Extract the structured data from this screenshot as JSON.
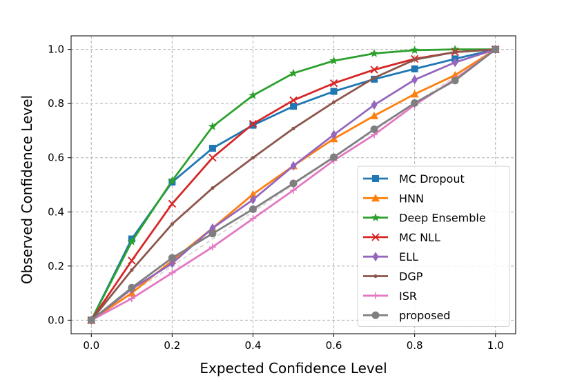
{
  "chart_data": {
    "type": "line",
    "title": "",
    "xlabel": "Expected Confidence Level",
    "ylabel": "Observed Confidence Level",
    "xlim": [
      -0.05,
      1.05
    ],
    "ylim": [
      -0.05,
      1.05
    ],
    "xticks": [
      0.0,
      0.2,
      0.4,
      0.6,
      0.8,
      1.0
    ],
    "yticks": [
      0.0,
      0.2,
      0.4,
      0.6,
      0.8,
      1.0
    ],
    "xtick_labels": [
      "0.0",
      "0.2",
      "0.4",
      "0.6",
      "0.8",
      "1.0"
    ],
    "ytick_labels": [
      "0.0",
      "0.2",
      "0.4",
      "0.6",
      "0.8",
      "1.0"
    ],
    "grid": true,
    "legend_position": "lower-right",
    "x": [
      0.0,
      0.1,
      0.2,
      0.3,
      0.4,
      0.5,
      0.6,
      0.7,
      0.8,
      0.9,
      1.0
    ],
    "series": [
      {
        "name": "MC Dropout",
        "color": "#1f77b4",
        "marker": "square",
        "values": [
          0.0,
          0.3,
          0.51,
          0.635,
          0.72,
          0.79,
          0.845,
          0.89,
          0.928,
          0.965,
          1.0
        ]
      },
      {
        "name": "HNN",
        "color": "#ff7f0e",
        "marker": "triangle",
        "values": [
          0.0,
          0.1,
          0.22,
          0.34,
          0.465,
          0.57,
          0.67,
          0.755,
          0.835,
          0.905,
          1.0
        ]
      },
      {
        "name": "Deep Ensemble",
        "color": "#2ca02c",
        "marker": "star",
        "values": [
          0.0,
          0.29,
          0.515,
          0.715,
          0.83,
          0.912,
          0.958,
          0.985,
          0.997,
          1.0,
          1.0
        ]
      },
      {
        "name": "MC NLL",
        "color": "#d62728",
        "marker": "x",
        "values": [
          0.0,
          0.22,
          0.43,
          0.6,
          0.725,
          0.812,
          0.875,
          0.925,
          0.965,
          0.99,
          1.0
        ]
      },
      {
        "name": "ELL",
        "color": "#9467bd",
        "marker": "diamond",
        "values": [
          0.0,
          0.115,
          0.21,
          0.34,
          0.445,
          0.57,
          0.685,
          0.795,
          0.888,
          0.952,
          1.0
        ]
      },
      {
        "name": "DGP",
        "color": "#8c564b",
        "marker": "dot",
        "values": [
          0.0,
          0.185,
          0.355,
          0.488,
          0.6,
          0.708,
          0.805,
          0.895,
          0.962,
          0.99,
          1.0
        ]
      },
      {
        "name": "ISR",
        "color": "#e377c2",
        "marker": "plus",
        "values": [
          0.0,
          0.08,
          0.175,
          0.27,
          0.375,
          0.48,
          0.59,
          0.685,
          0.795,
          0.89,
          1.0
        ]
      },
      {
        "name": "proposed",
        "color": "#7f7f7f",
        "marker": "circle",
        "values": [
          0.0,
          0.12,
          0.23,
          0.32,
          0.41,
          0.505,
          0.602,
          0.705,
          0.802,
          0.885,
          1.0
        ]
      }
    ],
    "reference_line": {
      "name": "ideal",
      "color": "#d9d9d9",
      "x": [
        0.0,
        1.0
      ],
      "values": [
        0.0,
        1.0
      ]
    }
  }
}
